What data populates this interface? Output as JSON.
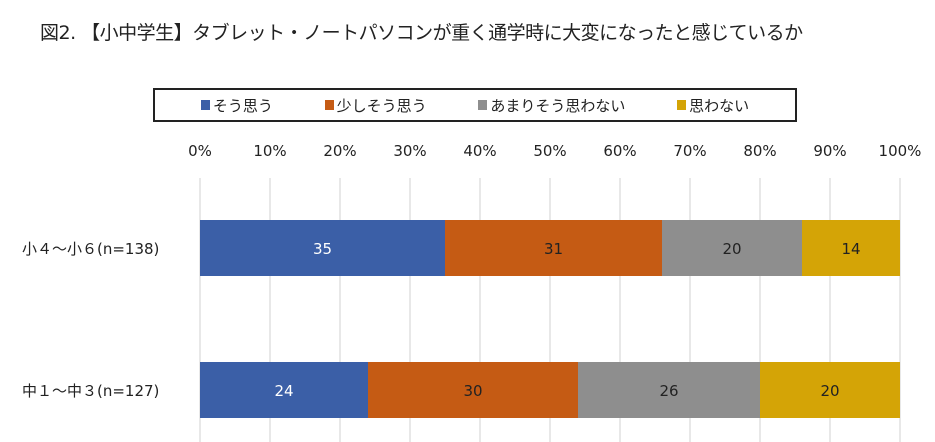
{
  "chart_data": {
    "type": "bar",
    "orientation": "horizontal",
    "stacked": true,
    "title": "図2. 【小中学生】タブレット・ノートパソコンが重く通学時に大変になったと感じているか",
    "categories": [
      "小４～小６(n=138)",
      "中１～中３(n=127)"
    ],
    "series": [
      {
        "name": "そう思う",
        "color": "#3b5fa7",
        "values": [
          35,
          24
        ]
      },
      {
        "name": "少しそう思う",
        "color": "#c55b14",
        "values": [
          31,
          30
        ]
      },
      {
        "name": "あまりそう思わない",
        "color": "#8e8e8e",
        "values": [
          20,
          26
        ]
      },
      {
        "name": "思わない",
        "color": "#d4a406",
        "values": [
          14,
          20
        ]
      }
    ],
    "xlim": [
      0,
      100
    ],
    "x_ticks": [
      "0%",
      "10%",
      "20%",
      "30%",
      "40%",
      "50%",
      "60%",
      "70%",
      "80%",
      "90%",
      "100%"
    ],
    "grid": true,
    "legend_position": "top",
    "axis_position": "top"
  }
}
